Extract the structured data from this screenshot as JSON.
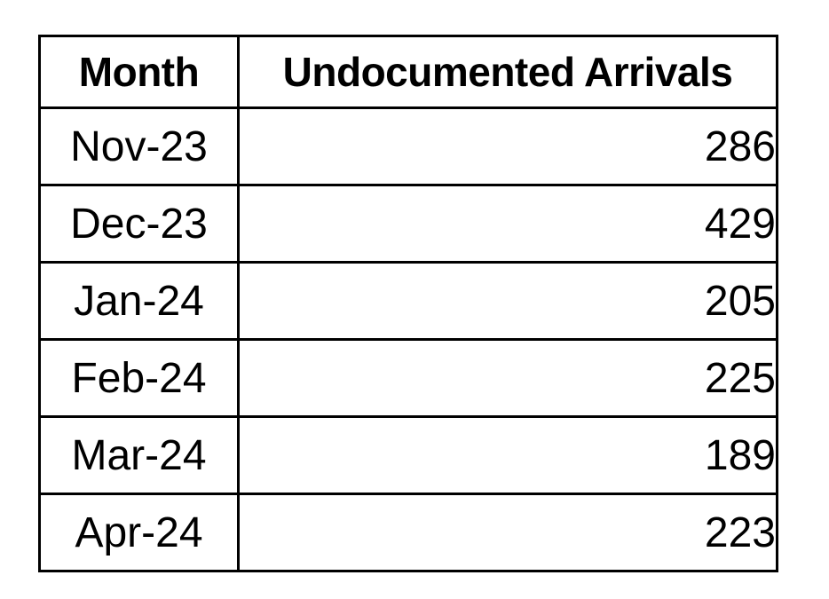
{
  "chart_data": {
    "type": "table",
    "title": "",
    "columns": [
      "Month",
      "Undocumented Arrivals"
    ],
    "categories": [
      "Nov-23",
      "Dec-23",
      "Jan-24",
      "Feb-24",
      "Mar-24",
      "Apr-24"
    ],
    "values": [
      286,
      429,
      205,
      225,
      189,
      223
    ]
  },
  "table": {
    "header": {
      "month": "Month",
      "arrivals": "Undocumented Arrivals"
    },
    "rows": [
      {
        "month": "Nov-23",
        "arrivals": "286"
      },
      {
        "month": "Dec-23",
        "arrivals": "429"
      },
      {
        "month": "Jan-24",
        "arrivals": "205"
      },
      {
        "month": "Feb-24",
        "arrivals": "225"
      },
      {
        "month": "Mar-24",
        "arrivals": "189"
      },
      {
        "month": "Apr-24",
        "arrivals": "223"
      }
    ]
  },
  "colors": {
    "border": "#000000",
    "text": "#000000",
    "background": "#ffffff"
  }
}
